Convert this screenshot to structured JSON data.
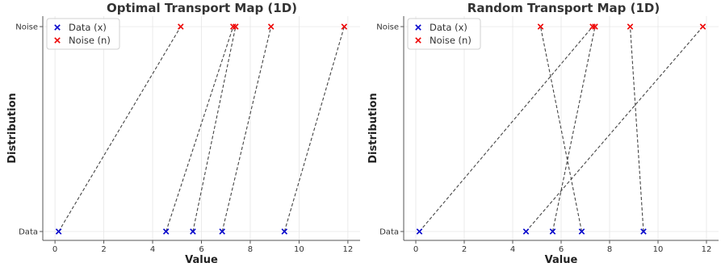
{
  "chart_data": [
    {
      "type": "scatter",
      "title": "Optimal Transport Map (1D)",
      "xlabel": "Value",
      "ylabel": "Distribution",
      "xlim": [
        -0.5,
        12.5
      ],
      "xticks": [
        0,
        2,
        4,
        6,
        8,
        10,
        12
      ],
      "ycategories": [
        "Data",
        "Noise"
      ],
      "grid": true,
      "legend": {
        "placement": "top-left",
        "entries": [
          "Data (x)",
          "Noise (n)"
        ]
      },
      "series": [
        {
          "name": "Data (x)",
          "level": "Data",
          "color": "#0000cc",
          "marker": "x",
          "values": [
            0.15,
            4.55,
            5.65,
            6.85,
            9.4
          ]
        },
        {
          "name": "Noise (n)",
          "level": "Noise",
          "color": "#ee0000",
          "marker": "x",
          "values": [
            5.15,
            7.3,
            7.4,
            8.85,
            11.85
          ]
        }
      ],
      "connections": [
        [
          0.15,
          5.15
        ],
        [
          4.55,
          7.3
        ],
        [
          5.65,
          7.4
        ],
        [
          6.85,
          8.85
        ],
        [
          9.4,
          11.85
        ]
      ]
    },
    {
      "type": "scatter",
      "title": "Random Transport Map (1D)",
      "xlabel": "Value",
      "ylabel": "Distribution",
      "xlim": [
        -0.5,
        12.5
      ],
      "xticks": [
        0,
        2,
        4,
        6,
        8,
        10,
        12
      ],
      "ycategories": [
        "Data",
        "Noise"
      ],
      "grid": true,
      "legend": {
        "placement": "top-left",
        "entries": [
          "Data (x)",
          "Noise (n)"
        ]
      },
      "series": [
        {
          "name": "Data (x)",
          "level": "Data",
          "color": "#0000cc",
          "marker": "x",
          "values": [
            0.15,
            4.55,
            5.65,
            6.85,
            9.4
          ]
        },
        {
          "name": "Noise (n)",
          "level": "Noise",
          "color": "#ee0000",
          "marker": "x",
          "values": [
            5.15,
            7.3,
            7.4,
            8.85,
            11.85
          ]
        }
      ],
      "connections": [
        [
          0.15,
          7.3
        ],
        [
          4.55,
          11.85
        ],
        [
          5.65,
          7.4
        ],
        [
          6.85,
          5.15
        ],
        [
          9.4,
          8.85
        ]
      ]
    }
  ]
}
